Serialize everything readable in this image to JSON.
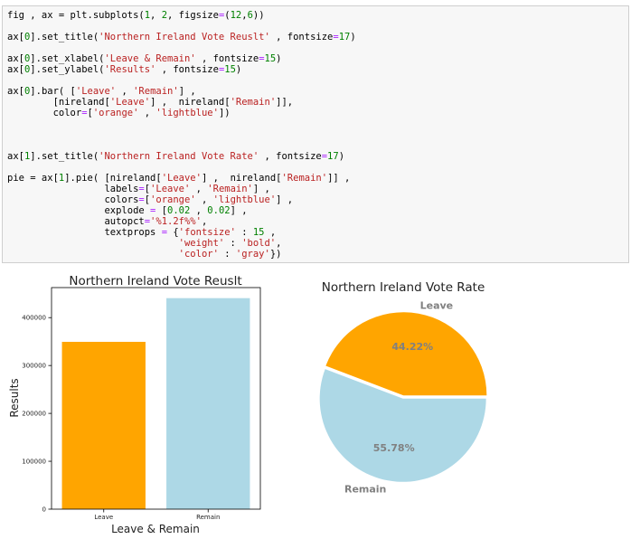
{
  "code_cell": {
    "lines": [
      [
        {
          "t": "fig , ax = plt.subplots(",
          "c": ""
        },
        {
          "t": "1",
          "c": "num"
        },
        {
          "t": ", ",
          "c": ""
        },
        {
          "t": "2",
          "c": "num"
        },
        {
          "t": ", figsize",
          "c": ""
        },
        {
          "t": "=",
          "c": "op"
        },
        {
          "t": "(",
          "c": ""
        },
        {
          "t": "12",
          "c": "num"
        },
        {
          "t": ",",
          "c": ""
        },
        {
          "t": "6",
          "c": "num"
        },
        {
          "t": "))",
          "c": ""
        }
      ],
      [],
      [
        {
          "t": "ax[",
          "c": ""
        },
        {
          "t": "0",
          "c": "num"
        },
        {
          "t": "].set_title(",
          "c": ""
        },
        {
          "t": "'Northern Ireland Vote Reuslt'",
          "c": "str"
        },
        {
          "t": " , fontsize",
          "c": ""
        },
        {
          "t": "=",
          "c": "op"
        },
        {
          "t": "17",
          "c": "num"
        },
        {
          "t": ")",
          "c": ""
        }
      ],
      [],
      [
        {
          "t": "ax[",
          "c": ""
        },
        {
          "t": "0",
          "c": "num"
        },
        {
          "t": "].set_xlabel(",
          "c": ""
        },
        {
          "t": "'Leave & Remain'",
          "c": "str"
        },
        {
          "t": " , fontsize",
          "c": ""
        },
        {
          "t": "=",
          "c": "op"
        },
        {
          "t": "15",
          "c": "num"
        },
        {
          "t": ")",
          "c": ""
        }
      ],
      [
        {
          "t": "ax[",
          "c": ""
        },
        {
          "t": "0",
          "c": "num"
        },
        {
          "t": "].set_ylabel(",
          "c": ""
        },
        {
          "t": "'Results'",
          "c": "str"
        },
        {
          "t": " , fontsize",
          "c": ""
        },
        {
          "t": "=",
          "c": "op"
        },
        {
          "t": "15",
          "c": "num"
        },
        {
          "t": ")",
          "c": ""
        }
      ],
      [],
      [
        {
          "t": "ax[",
          "c": ""
        },
        {
          "t": "0",
          "c": "num"
        },
        {
          "t": "].bar( [",
          "c": ""
        },
        {
          "t": "'Leave'",
          "c": "str"
        },
        {
          "t": " , ",
          "c": ""
        },
        {
          "t": "'Remain'",
          "c": "str"
        },
        {
          "t": "] ,",
          "c": ""
        }
      ],
      [
        {
          "t": "        [nireland[",
          "c": ""
        },
        {
          "t": "'Leave'",
          "c": "str"
        },
        {
          "t": "] ,  nireland[",
          "c": ""
        },
        {
          "t": "'Remain'",
          "c": "str"
        },
        {
          "t": "]],",
          "c": ""
        }
      ],
      [
        {
          "t": "        color",
          "c": ""
        },
        {
          "t": "=",
          "c": "op"
        },
        {
          "t": "[",
          "c": ""
        },
        {
          "t": "'orange'",
          "c": "str"
        },
        {
          "t": " , ",
          "c": ""
        },
        {
          "t": "'lightblue'",
          "c": "str"
        },
        {
          "t": "])",
          "c": ""
        }
      ],
      [],
      [],
      [],
      [
        {
          "t": "ax[",
          "c": ""
        },
        {
          "t": "1",
          "c": "num"
        },
        {
          "t": "].set_title(",
          "c": ""
        },
        {
          "t": "'Northern Ireland Vote Rate'",
          "c": "str"
        },
        {
          "t": " , fontsize",
          "c": ""
        },
        {
          "t": "=",
          "c": "op"
        },
        {
          "t": "17",
          "c": "num"
        },
        {
          "t": ")",
          "c": ""
        }
      ],
      [],
      [
        {
          "t": "pie = ax[",
          "c": ""
        },
        {
          "t": "1",
          "c": "num"
        },
        {
          "t": "].pie( [nireland[",
          "c": ""
        },
        {
          "t": "'Leave'",
          "c": "str"
        },
        {
          "t": "] ,  nireland[",
          "c": ""
        },
        {
          "t": "'Remain'",
          "c": "str"
        },
        {
          "t": "]] ,",
          "c": ""
        }
      ],
      [
        {
          "t": "                 labels",
          "c": ""
        },
        {
          "t": "=",
          "c": "op"
        },
        {
          "t": "[",
          "c": ""
        },
        {
          "t": "'Leave'",
          "c": "str"
        },
        {
          "t": " , ",
          "c": ""
        },
        {
          "t": "'Remain'",
          "c": "str"
        },
        {
          "t": "] ,",
          "c": ""
        }
      ],
      [
        {
          "t": "                 colors",
          "c": ""
        },
        {
          "t": "=",
          "c": "op"
        },
        {
          "t": "[",
          "c": ""
        },
        {
          "t": "'orange'",
          "c": "str"
        },
        {
          "t": " , ",
          "c": ""
        },
        {
          "t": "'lightblue'",
          "c": "str"
        },
        {
          "t": "] ,",
          "c": ""
        }
      ],
      [
        {
          "t": "                 explode ",
          "c": ""
        },
        {
          "t": "=",
          "c": "op"
        },
        {
          "t": " [",
          "c": ""
        },
        {
          "t": "0.02",
          "c": "num"
        },
        {
          "t": " , ",
          "c": ""
        },
        {
          "t": "0.02",
          "c": "num"
        },
        {
          "t": "] ,",
          "c": ""
        }
      ],
      [
        {
          "t": "                 autopct",
          "c": ""
        },
        {
          "t": "=",
          "c": "op"
        },
        {
          "t": "'%1.2f%%'",
          "c": "str"
        },
        {
          "t": ",",
          "c": ""
        }
      ],
      [
        {
          "t": "                 textprops ",
          "c": ""
        },
        {
          "t": "=",
          "c": "op"
        },
        {
          "t": " {",
          "c": ""
        },
        {
          "t": "'fontsize'",
          "c": "str"
        },
        {
          "t": " : ",
          "c": ""
        },
        {
          "t": "15",
          "c": "num"
        },
        {
          "t": " ,",
          "c": ""
        }
      ],
      [
        {
          "t": "                              ",
          "c": ""
        },
        {
          "t": "'weight'",
          "c": "str"
        },
        {
          "t": " : ",
          "c": ""
        },
        {
          "t": "'bold'",
          "c": "str"
        },
        {
          "t": ",",
          "c": ""
        }
      ],
      [
        {
          "t": "                              ",
          "c": ""
        },
        {
          "t": "'color'",
          "c": "str"
        },
        {
          "t": " : ",
          "c": ""
        },
        {
          "t": "'gray'",
          "c": "str"
        },
        {
          "t": "})",
          "c": ""
        }
      ]
    ]
  },
  "chart_data": [
    {
      "type": "bar",
      "title": "Northern Ireland Vote Reuslt",
      "xlabel": "Leave & Remain",
      "ylabel": "Results",
      "categories": [
        "Leave",
        "Remain"
      ],
      "values": [
        349442,
        440707
      ],
      "colors": [
        "#ffa500",
        "#add8e6"
      ],
      "ylim": [
        0,
        462742
      ],
      "yticks": [
        0,
        100000,
        200000,
        300000,
        400000
      ],
      "ytick_labels": [
        "0",
        "100000",
        "200000",
        "300000",
        "400000"
      ],
      "grid": false
    },
    {
      "type": "pie",
      "title": "Northern Ireland Vote Rate",
      "labels": [
        "Leave",
        "Remain"
      ],
      "values": [
        44.22,
        55.78
      ],
      "value_labels": [
        "44.22%",
        "55.78%"
      ],
      "colors": [
        "#ffa500",
        "#add8e6"
      ],
      "explode": [
        0.02,
        0.02
      ],
      "text_color": "#808080"
    }
  ]
}
